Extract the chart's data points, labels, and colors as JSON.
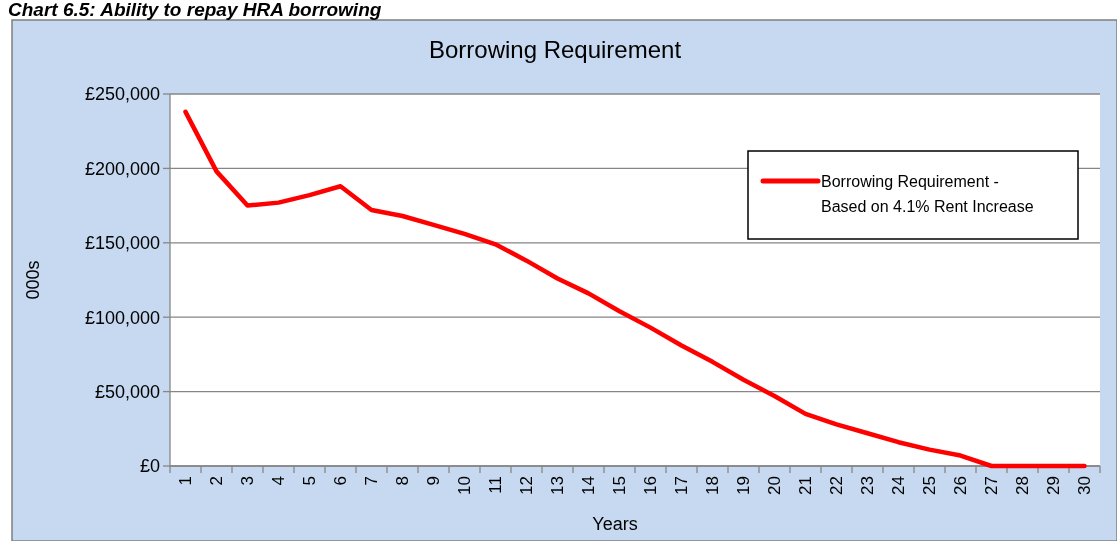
{
  "chart_data": {
    "type": "line",
    "title": "Borrowing Requirement",
    "annotations": [
      "Chart 6.5: Ability to repay HRA borrowing"
    ],
    "xlabel": "Years",
    "ylabel": "000s",
    "categories": [
      "1",
      "2",
      "3",
      "4",
      "5",
      "6",
      "7",
      "8",
      "9",
      "10",
      "11",
      "12",
      "13",
      "14",
      "15",
      "16",
      "17",
      "18",
      "19",
      "20",
      "21",
      "22",
      "23",
      "24",
      "25",
      "26",
      "27",
      "28",
      "29",
      "30"
    ],
    "series": [
      {
        "name": "Borrowing Requirement - Based on 4.1% Rent Increase",
        "color": "#ff0000",
        "values": [
          238000,
          198000,
          175000,
          177000,
          182000,
          188000,
          172000,
          168000,
          162000,
          156000,
          149000,
          138000,
          126000,
          116000,
          104000,
          93000,
          81000,
          70000,
          58000,
          47000,
          35000,
          28000,
          22000,
          16000,
          11000,
          7000,
          0,
          0,
          0,
          0
        ]
      }
    ],
    "ylim": [
      0,
      250000
    ],
    "yticks": [
      {
        "value": 0,
        "label": "£0"
      },
      {
        "value": 50000,
        "label": "£50,000"
      },
      {
        "value": 100000,
        "label": "£100,000"
      },
      {
        "value": 150000,
        "label": "£150,000"
      },
      {
        "value": 200000,
        "label": "£200,000"
      },
      {
        "value": 250000,
        "label": "£250,000"
      }
    ],
    "grid": "y",
    "legend": "top right",
    "marker": "none",
    "line_style": "solid"
  }
}
